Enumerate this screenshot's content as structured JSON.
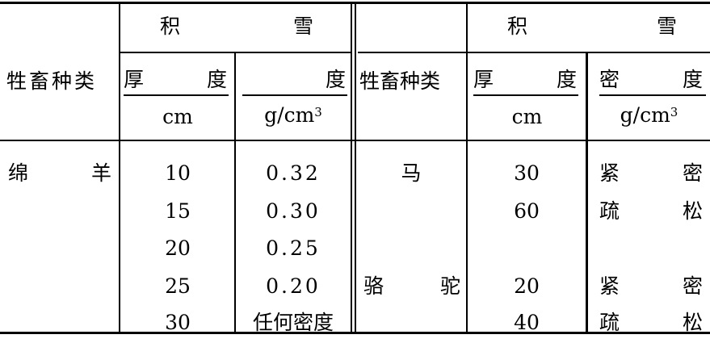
{
  "header": {
    "left": {
      "animal_type": "牲畜种类",
      "group_chars": [
        "积",
        "雪"
      ],
      "depth_chars": [
        "厚",
        "度"
      ],
      "depth_unit": "cm",
      "density_chars": [
        "",
        "度"
      ],
      "density_unit": "g/cm",
      "density_unit_sup": "3"
    },
    "right": {
      "animal_type": "牲畜种类",
      "group_chars": [
        "积",
        "雪"
      ],
      "depth_chars": [
        "厚",
        "度"
      ],
      "depth_unit": "cm",
      "density_chars": [
        "密",
        "度"
      ],
      "density_unit": "g/cm",
      "density_unit_sup": "3"
    }
  },
  "left_rows": {
    "animal_chars": [
      "绵",
      "羊"
    ],
    "depth": [
      "10",
      "15",
      "20",
      "25",
      "30"
    ],
    "density": [
      "0.32",
      "0.30",
      "0.25",
      "0.20",
      "任何密度"
    ]
  },
  "right_rows": [
    {
      "animal": "马",
      "depth": "30",
      "density": [
        "紧",
        "密"
      ]
    },
    {
      "animal": "",
      "depth": "60",
      "density": [
        "疏",
        "松"
      ]
    },
    {
      "animal": "",
      "depth": "",
      "density": [
        "",
        ""
      ]
    },
    {
      "animal_chars": [
        "骆",
        "驼"
      ],
      "depth": "20",
      "density": [
        "紧",
        "密"
      ]
    },
    {
      "animal": "",
      "depth": "40",
      "density": [
        "疏",
        "松"
      ]
    }
  ]
}
